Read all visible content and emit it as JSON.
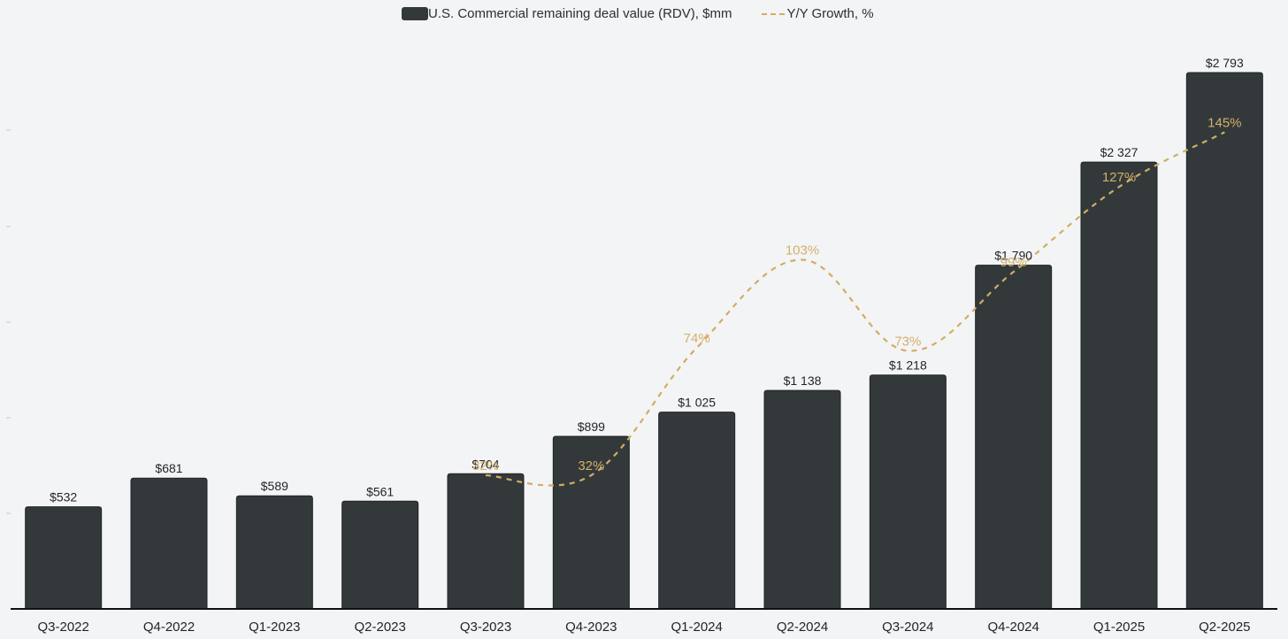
{
  "chart_data": {
    "type": "bar",
    "categories": [
      "Q3-2022",
      "Q4-2022",
      "Q1-2023",
      "Q2-2023",
      "Q3-2023",
      "Q4-2023",
      "Q1-2024",
      "Q2-2024",
      "Q3-2024",
      "Q4-2024",
      "Q1-2025",
      "Q2-2025"
    ],
    "series": [
      {
        "name": "U.S. Commercial remaining deal value (RDV), $mm",
        "kind": "bar",
        "values": [
          532,
          681,
          589,
          561,
          704,
          899,
          1025,
          1138,
          1218,
          1790,
          2327,
          2793
        ],
        "labels": [
          "$532",
          "$681",
          "$589",
          "$561",
          "$704",
          "$899",
          "$1 025",
          "$1 138",
          "$1 218",
          "$1 790",
          "$2 327",
          "$2 793"
        ],
        "color": "#33393b"
      },
      {
        "name": "Y/Y Growth, %",
        "kind": "line",
        "style": "dashed",
        "values": [
          null,
          null,
          null,
          null,
          32,
          32,
          74,
          103,
          73,
          99,
          127,
          145
        ],
        "labels": [
          null,
          null,
          null,
          null,
          "32%",
          "32%",
          "74%",
          "103%",
          "73%",
          "99%",
          "127%",
          "145%"
        ],
        "color": "#d2ad62"
      }
    ],
    "title": "",
    "xlabel": "",
    "ylabel": "",
    "ylim": [
      0,
      3000
    ],
    "y2lim": [
      0,
      240
    ],
    "legend": "top-center",
    "grid": false
  }
}
